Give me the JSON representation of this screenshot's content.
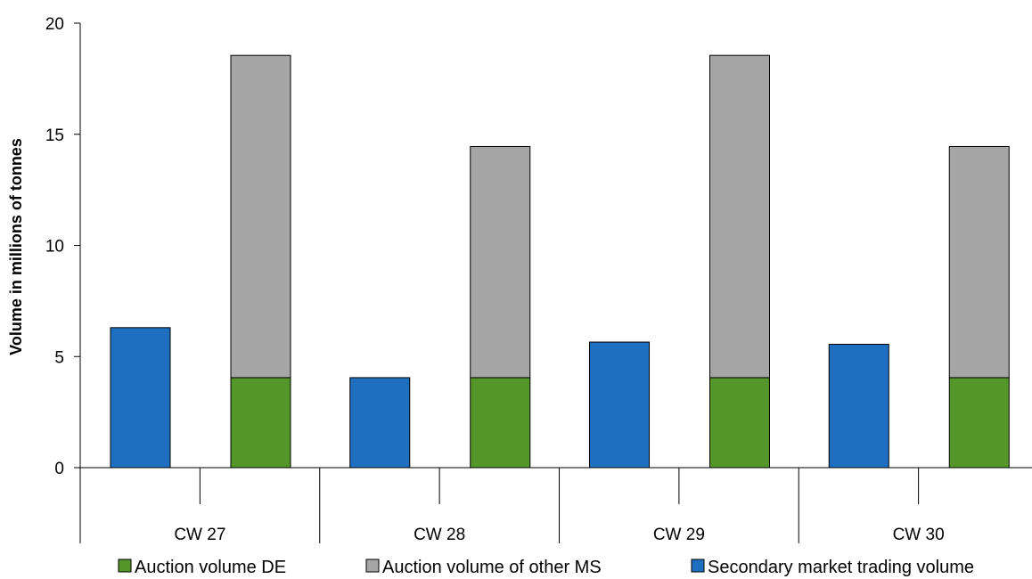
{
  "chart_data": {
    "type": "bar",
    "categories": [
      "CW 27",
      "CW 28",
      "CW 29",
      "CW 30"
    ],
    "ylabel": "Volume in millions of tonnes",
    "ylim": [
      0,
      20
    ],
    "yticks": [
      "0",
      "5",
      "10",
      "15",
      "20"
    ],
    "grid": false,
    "legend_position": "bottom",
    "series": [
      {
        "name": "Secondary market trading volume",
        "values": [
          6.3,
          4.05,
          5.65,
          5.55
        ],
        "stack": "secondary"
      },
      {
        "name": "Auction volume DE",
        "values": [
          4.05,
          4.05,
          4.05,
          4.05
        ],
        "stack": "auction"
      },
      {
        "name": "Auction volume of other MS",
        "values": [
          14.5,
          10.4,
          14.5,
          10.4
        ],
        "stack": "auction"
      }
    ],
    "legend": [
      "Auction volume DE",
      "Auction volume of other MS",
      "Secondary market trading volume"
    ],
    "colors": {
      "Secondary market trading volume": "#1f6fc0",
      "Auction volume DE": "#55962a",
      "Auction volume of other MS": "#a6a6a6"
    }
  }
}
